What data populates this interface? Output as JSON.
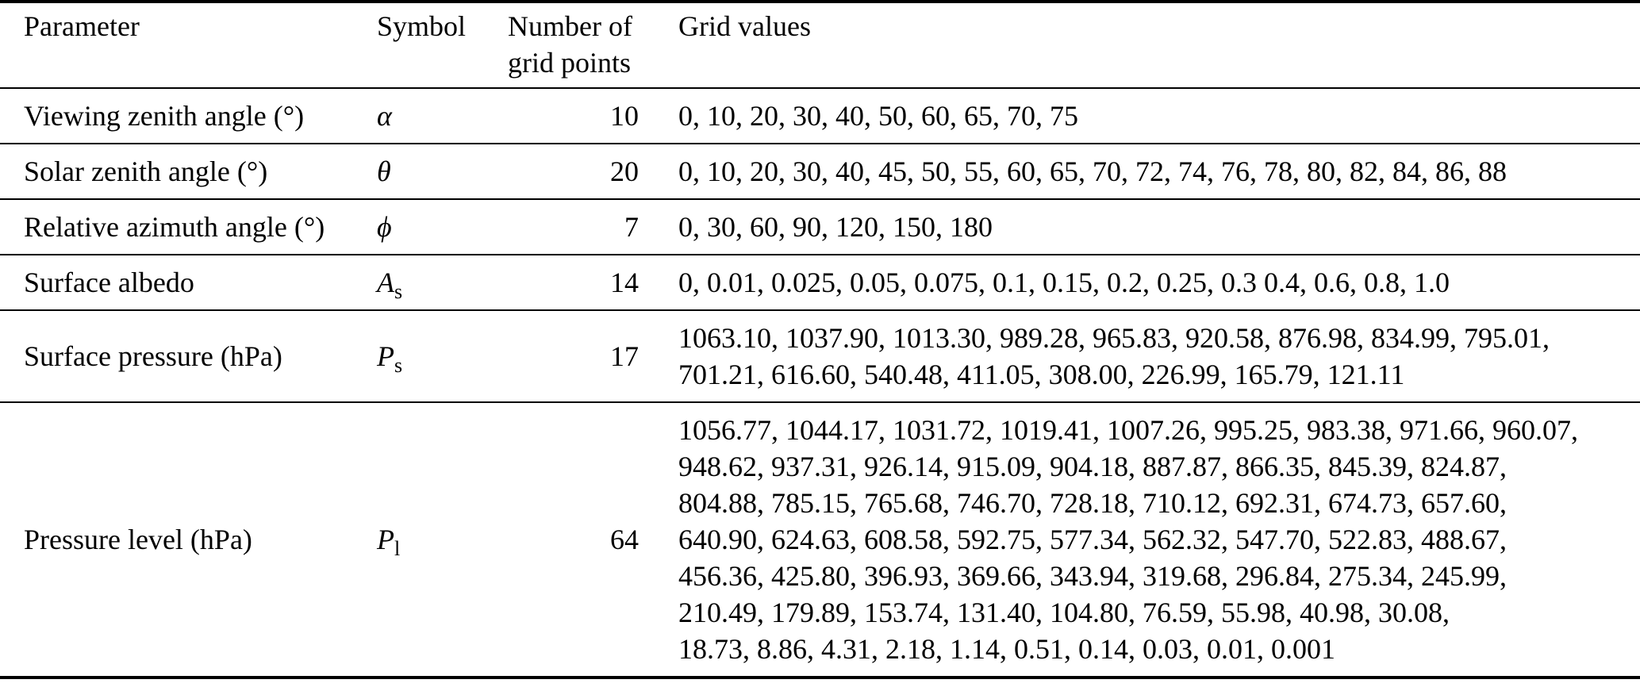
{
  "page": {
    "background_color": "#ffffff",
    "text_color": "#000000"
  },
  "table": {
    "headers": {
      "parameter": "Parameter",
      "symbol": "Symbol",
      "num_grid_points": "Number of\ngrid points",
      "grid_values": "Grid values"
    },
    "rows": [
      {
        "parameter": "Viewing zenith angle (°)",
        "symbol": {
          "base": "α",
          "subscript": ""
        },
        "num_grid_points": "10",
        "grid_values": "0, 10, 20, 30, 40, 50, 60, 65, 70, 75"
      },
      {
        "parameter": "Solar zenith angle (°)",
        "symbol": {
          "base": "θ",
          "subscript": ""
        },
        "num_grid_points": "20",
        "grid_values": "0, 10, 20, 30, 40, 45, 50, 55, 60, 65, 70, 72, 74, 76, 78, 80, 82, 84, 86, 88"
      },
      {
        "parameter": "Relative azimuth angle (°)",
        "symbol": {
          "base": "ϕ",
          "subscript": ""
        },
        "num_grid_points": "7",
        "grid_values": "0, 30, 60, 90, 120, 150, 180"
      },
      {
        "parameter": "Surface albedo",
        "symbol": {
          "base": "A",
          "subscript": "s"
        },
        "num_grid_points": "14",
        "grid_values": "0, 0.01, 0.025, 0.05, 0.075, 0.1, 0.15, 0.2, 0.25, 0.3 0.4, 0.6, 0.8, 1.0"
      },
      {
        "parameter": "Surface pressure (hPa)",
        "symbol": {
          "base": "P",
          "subscript": "s"
        },
        "num_grid_points": "17",
        "grid_values": "1063.10, 1037.90, 1013.30, 989.28, 965.83, 920.58, 876.98, 834.99, 795.01,\n701.21, 616.60, 540.48, 411.05, 308.00, 226.99, 165.79, 121.11"
      },
      {
        "parameter": "Pressure level (hPa)",
        "symbol": {
          "base": "P",
          "subscript": "l"
        },
        "num_grid_points": "64",
        "grid_values": "1056.77, 1044.17, 1031.72, 1019.41, 1007.26, 995.25, 983.38, 971.66, 960.07,\n948.62, 937.31, 926.14, 915.09, 904.18, 887.87, 866.35, 845.39, 824.87,\n804.88, 785.15, 765.68, 746.70, 728.18, 710.12, 692.31, 674.73, 657.60,\n640.90, 624.63, 608.58, 592.75, 577.34, 562.32, 547.70, 522.83, 488.67,\n456.36, 425.80, 396.93, 369.66, 343.94, 319.68, 296.84, 275.34, 245.99,\n210.49, 179.89, 153.74, 131.40, 104.80, 76.59, 55.98, 40.98, 30.08,\n18.73, 8.86, 4.31, 2.18, 1.14, 0.51, 0.14, 0.03, 0.01, 0.001"
      }
    ]
  }
}
